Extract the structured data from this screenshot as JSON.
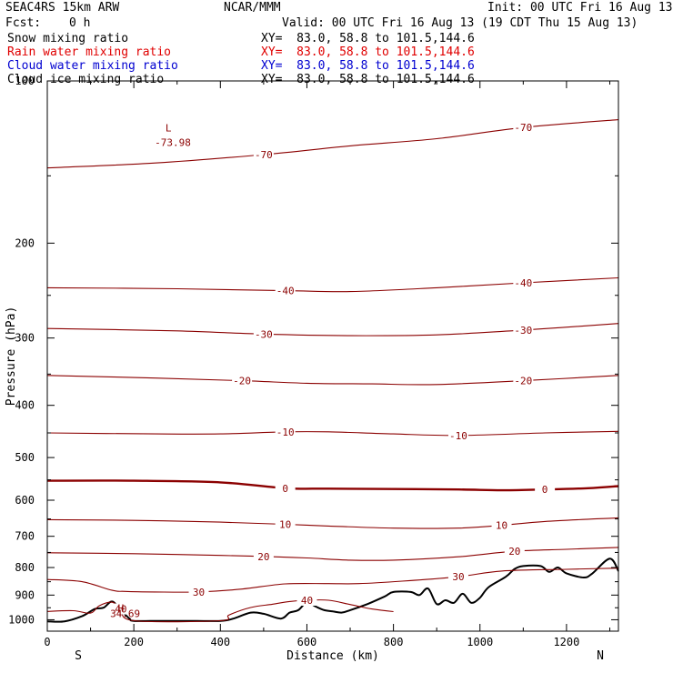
{
  "header": {
    "model": "SEAC4RS 15km ARW",
    "center": "NCAR/MMM",
    "init": "Init: 00 UTC Fri 16 Aug 13",
    "fcst_label": "Fcst:",
    "fcst_value": "0 h",
    "valid": "Valid: 00 UTC Fri 16 Aug 13 (19 CDT Thu 15 Aug 13)"
  },
  "fields": [
    {
      "name": "Snow mixing ratio",
      "xy": "XY=  83.0, 58.8 to 101.5,144.6",
      "color": "#000000"
    },
    {
      "name": "Rain water mixing ratio",
      "xy": "XY=  83.0, 58.8 to 101.5,144.6",
      "color": "#e00000"
    },
    {
      "name": "Cloud water mixing ratio",
      "xy": "XY=  83.0, 58.8 to 101.5,144.6",
      "color": "#0000d0"
    },
    {
      "name": "Cloud ice mixing ratio",
      "xy": "XY=  83.0, 58.8 to 101.5,144.6",
      "color": "#000000"
    }
  ],
  "chart_data": {
    "type": "line",
    "xlabel": "Distance (km)",
    "ylabel": "Pressure (hPa)",
    "xlim": [
      0,
      1320
    ],
    "ylim": [
      1050,
      100
    ],
    "yscale": "log",
    "xticks": [
      0,
      200,
      400,
      600,
      800,
      1000,
      1200
    ],
    "yticks": [
      100,
      200,
      300,
      400,
      500,
      600,
      700,
      800,
      900,
      1000
    ],
    "ytick_labels": [
      "100",
      "200",
      "300",
      "400",
      "500",
      "600",
      "700",
      "800",
      "900",
      "1000"
    ],
    "x_end_labels": {
      "left": "S",
      "right": "N"
    },
    "contour_color": "#8b0000",
    "terrain_color": "#000000",
    "temperature_contours": [
      {
        "level": -70,
        "label": "-70",
        "points": [
          [
            0,
            145
          ],
          [
            250,
            142
          ],
          [
            500,
            137
          ],
          [
            700,
            132
          ],
          [
            900,
            128
          ],
          [
            1100,
            122
          ],
          [
            1320,
            118
          ]
        ]
      },
      {
        "level": -40,
        "label": "-40",
        "points": [
          [
            0,
            242
          ],
          [
            300,
            243
          ],
          [
            550,
            245
          ],
          [
            700,
            246
          ],
          [
            900,
            242
          ],
          [
            1100,
            237
          ],
          [
            1320,
            232
          ]
        ]
      },
      {
        "level": -30,
        "label": "-30",
        "points": [
          [
            0,
            288
          ],
          [
            300,
            291
          ],
          [
            500,
            295
          ],
          [
            700,
            297
          ],
          [
            900,
            296
          ],
          [
            1100,
            290
          ],
          [
            1320,
            282
          ]
        ]
      },
      {
        "level": -20,
        "label": "-20",
        "points": [
          [
            0,
            352
          ],
          [
            250,
            356
          ],
          [
            450,
            360
          ],
          [
            600,
            364
          ],
          [
            750,
            365
          ],
          [
            900,
            366
          ],
          [
            1100,
            360
          ],
          [
            1320,
            352
          ]
        ]
      },
      {
        "level": -10,
        "label": "-10",
        "points": [
          [
            0,
            450
          ],
          [
            250,
            452
          ],
          [
            400,
            452
          ],
          [
            550,
            448
          ],
          [
            650,
            448
          ],
          [
            800,
            452
          ],
          [
            950,
            455
          ],
          [
            1150,
            450
          ],
          [
            1320,
            447
          ]
        ]
      },
      {
        "level": 0,
        "label": "0",
        "bold": true,
        "points": [
          [
            0,
            552
          ],
          [
            200,
            552
          ],
          [
            400,
            556
          ],
          [
            550,
            570
          ],
          [
            650,
            571
          ],
          [
            800,
            572
          ],
          [
            950,
            573
          ],
          [
            1050,
            575
          ],
          [
            1150,
            573
          ],
          [
            1250,
            570
          ],
          [
            1320,
            565
          ]
        ]
      },
      {
        "level": 10,
        "label": "10",
        "points": [
          [
            0,
            652
          ],
          [
            200,
            654
          ],
          [
            400,
            659
          ],
          [
            550,
            665
          ],
          [
            650,
            670
          ],
          [
            800,
            676
          ],
          [
            950,
            676
          ],
          [
            1050,
            668
          ],
          [
            1150,
            657
          ],
          [
            1320,
            647
          ]
        ]
      },
      {
        "level": 20,
        "label": "20",
        "points": [
          [
            0,
            751
          ],
          [
            200,
            754
          ],
          [
            350,
            758
          ],
          [
            500,
            763
          ],
          [
            600,
            768
          ],
          [
            700,
            775
          ],
          [
            800,
            775
          ],
          [
            950,
            764
          ],
          [
            1080,
            746
          ],
          [
            1200,
            740
          ],
          [
            1320,
            734
          ]
        ]
      },
      {
        "level": 30,
        "label": "30",
        "points": [
          [
            0,
            842
          ],
          [
            80,
            850
          ],
          [
            150,
            882
          ],
          [
            180,
            886
          ],
          [
            250,
            888
          ],
          [
            350,
            888
          ],
          [
            450,
            877
          ],
          [
            550,
            858
          ],
          [
            650,
            857
          ],
          [
            720,
            857
          ],
          [
            820,
            848
          ],
          [
            950,
            832
          ],
          [
            1050,
            812
          ],
          [
            1200,
            806
          ],
          [
            1320,
            802
          ]
        ]
      },
      {
        "level": 40,
        "label": "40",
        "points": [
          [
            0,
            965
          ],
          [
            60,
            962
          ],
          [
            100,
            972
          ],
          [
            120,
            942
          ],
          [
            150,
            928
          ],
          [
            170,
            955
          ],
          [
            200,
            1004
          ],
          [
            400,
            1004
          ],
          [
            420,
            980
          ],
          [
            470,
            949
          ],
          [
            520,
            936
          ],
          [
            560,
            925
          ],
          [
            600,
            920
          ],
          [
            650,
            920
          ],
          [
            700,
            937
          ],
          [
            750,
            955
          ],
          [
            800,
            966
          ]
        ]
      }
    ],
    "terrain": {
      "x": [
        0,
        40,
        80,
        110,
        130,
        150,
        170,
        190,
        200,
        260,
        320,
        400,
        430,
        470,
        500,
        540,
        560,
        580,
        600,
        620,
        640,
        660,
        680,
        700,
        740,
        780,
        800,
        840,
        860,
        880,
        900,
        920,
        940,
        960,
        980,
        1000,
        1020,
        1060,
        1080,
        1100,
        1140,
        1160,
        1180,
        1200,
        1240,
        1260,
        1300,
        1320
      ],
      "pressure": [
        1007,
        1007,
        985,
        955,
        950,
        925,
        960,
        995,
        1005,
        1005,
        1005,
        1005,
        995,
        970,
        975,
        995,
        970,
        960,
        928,
        945,
        960,
        965,
        970,
        960,
        935,
        905,
        888,
        888,
        900,
        875,
        935,
        920,
        930,
        895,
        930,
        910,
        870,
        832,
        805,
        795,
        795,
        815,
        800,
        820,
        835,
        820,
        770,
        812
      ]
    },
    "annotations": [
      {
        "text": "L",
        "x": 280,
        "p": 124,
        "color": "#8b0000"
      },
      {
        "text": "-73.98",
        "x": 290,
        "p": 132,
        "color": "#8b0000"
      },
      {
        "text": "H",
        "x": 170,
        "p": 965,
        "color": "#8b0000"
      },
      {
        "text": "34.69",
        "x": 180,
        "p": 988,
        "color": "#8b0000"
      }
    ]
  }
}
